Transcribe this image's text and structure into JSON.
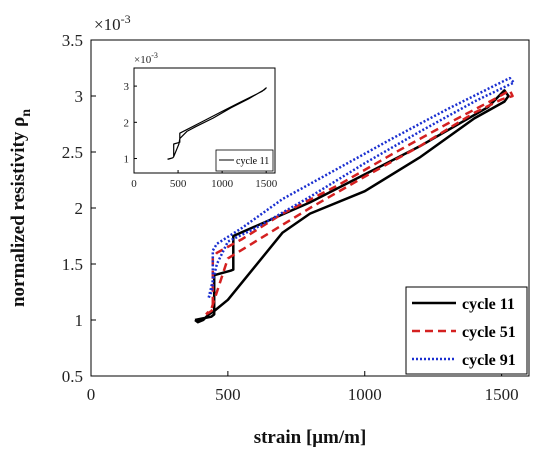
{
  "chart_data": [
    {
      "type": "line",
      "xlabel": "strain [μm/m]",
      "ylabel": "normalized resistivity ρ",
      "ylabel_subscript": "n",
      "y_exponent_label": "×10",
      "y_exponent_power": "-3",
      "xlim": [
        0,
        1600
      ],
      "ylim": [
        0.5,
        3.5
      ],
      "xticks": [
        0,
        500,
        1000,
        1500
      ],
      "yticks": [
        0.5,
        1,
        1.5,
        2,
        2.5,
        3,
        3.5
      ],
      "xtick_labels": [
        "0",
        "500",
        "1000",
        "1500"
      ],
      "ytick_labels": [
        "0.5",
        "1",
        "1.5",
        "2",
        "2.5",
        "3",
        "3.5"
      ],
      "grid": false,
      "legend_position": "bottom-right",
      "series": [
        {
          "name": "cycle 11",
          "color": "#000000",
          "style": "solid",
          "x": [
            380,
            440,
            450,
            450,
            510,
            520,
            520,
            800,
            1000,
            1200,
            1450,
            1510,
            1525,
            1510,
            1400,
            1200,
            1000,
            800,
            700,
            500,
            450,
            430,
            410,
            390,
            380
          ],
          "y": [
            1.0,
            1.03,
            1.05,
            1.4,
            1.44,
            1.45,
            1.75,
            2.05,
            2.3,
            2.55,
            2.9,
            3.05,
            3.0,
            2.95,
            2.8,
            2.45,
            2.15,
            1.95,
            1.78,
            1.18,
            1.08,
            1.05,
            1.0,
            0.98,
            1.0
          ]
        },
        {
          "name": "cycle 51",
          "color": "#d42020",
          "style": "dashed",
          "x": [
            420,
            440,
            445,
            445,
            460,
            550,
            700,
            900,
            1100,
            1300,
            1480,
            1530,
            1540,
            1500,
            1400,
            1200,
            1000,
            800,
            600,
            500,
            460,
            440,
            420
          ],
          "y": [
            1.05,
            1.08,
            1.1,
            1.55,
            1.6,
            1.72,
            1.95,
            2.2,
            2.48,
            2.75,
            2.98,
            3.05,
            3.0,
            2.97,
            2.85,
            2.55,
            2.28,
            2.0,
            1.7,
            1.55,
            1.25,
            1.1,
            1.05
          ]
        },
        {
          "name": "cycle 91",
          "color": "#1a2fd0",
          "style": "dotted",
          "x": [
            430,
            440,
            445,
            445,
            460,
            550,
            700,
            900,
            1100,
            1300,
            1480,
            1530,
            1545,
            1510,
            1400,
            1200,
            1000,
            800,
            600,
            500,
            460,
            440,
            430
          ],
          "y": [
            1.2,
            1.25,
            1.3,
            1.62,
            1.68,
            1.82,
            2.08,
            2.35,
            2.62,
            2.88,
            3.1,
            3.16,
            3.12,
            3.08,
            2.95,
            2.68,
            2.4,
            2.1,
            1.82,
            1.7,
            1.5,
            1.3,
            1.2
          ]
        }
      ]
    },
    {
      "type": "line",
      "y_exponent_label": "×10",
      "y_exponent_power": "-3",
      "xlim": [
        0,
        1600
      ],
      "ylim": [
        0.6,
        3.5
      ],
      "xticks": [
        0,
        500,
        1000,
        1500
      ],
      "yticks": [
        1,
        2,
        3
      ],
      "xtick_labels": [
        "0",
        "500",
        "1000",
        "1500"
      ],
      "ytick_labels": [
        "1",
        "2",
        "3"
      ],
      "grid": false,
      "legend_position": "bottom-right",
      "series": [
        {
          "name": "cycle 11",
          "color": "#000000",
          "style": "solid",
          "x": [
            380,
            440,
            450,
            450,
            510,
            520,
            520,
            800,
            1000,
            1200,
            1450,
            1500,
            1480,
            1300,
            1100,
            900,
            700,
            600,
            520,
            510,
            450,
            440,
            390,
            380
          ],
          "y": [
            0.98,
            1.02,
            1.05,
            1.4,
            1.44,
            1.45,
            1.7,
            2.05,
            2.3,
            2.55,
            2.85,
            2.95,
            2.9,
            2.65,
            2.4,
            2.12,
            1.88,
            1.75,
            1.55,
            1.4,
            1.05,
            1.02,
            0.98,
            0.98
          ]
        }
      ]
    }
  ]
}
